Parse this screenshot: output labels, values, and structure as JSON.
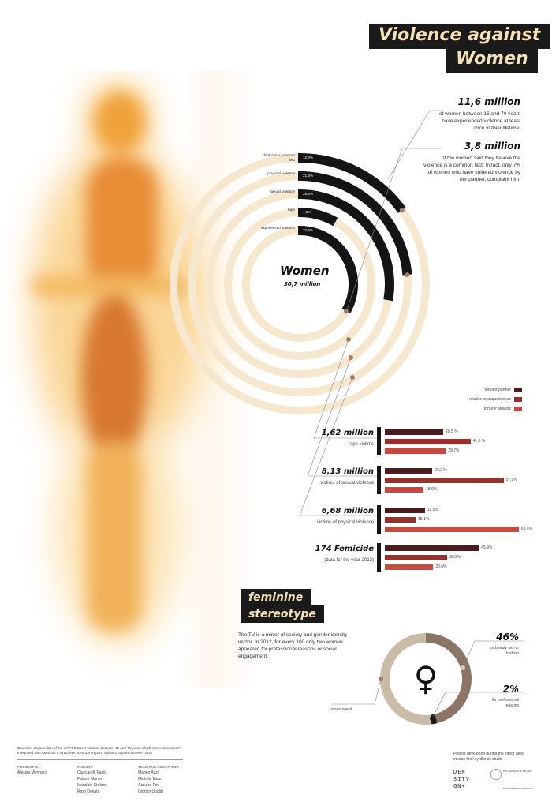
{
  "title": {
    "line1": "Violence against",
    "line2": "Women"
  },
  "facts": [
    {
      "value": "11,6 million",
      "text": "of women between 16 and 70 years have experienced violence at least once in their lifetime."
    },
    {
      "value": "3,8 million",
      "text": "of the women said they believe the violence is a common fact; In fact, only 7% of women who have suffered violence by her partner, complaint him."
    }
  ],
  "women_center": {
    "label": "Women",
    "value": "30,7 million"
  },
  "ring_chart": {
    "type": "arc",
    "series": [
      {
        "label": "think it is a common fact",
        "display": "12,3%",
        "value": 12.3
      },
      {
        "label": "physical violence",
        "display": "21,8%",
        "value": 21.8
      },
      {
        "label": "sexual violence",
        "display": "26,5%",
        "value": 26.5
      },
      {
        "label": "rape",
        "display": "4,8%",
        "value": 4.8
      },
      {
        "label": "experienced violence",
        "display": "32,6%",
        "value": 32.6
      }
    ]
  },
  "legend": [
    {
      "label": "torturer partner",
      "color": "#4a1c1e"
    },
    {
      "label": "relative or acquaintance",
      "color": "#9a2f2c"
    },
    {
      "label": "torturer strange",
      "color": "#c94840"
    }
  ],
  "chart_data": {
    "type": "bar",
    "orientation": "horizontal",
    "series_names": [
      "torturer partner",
      "relative or acquaintance",
      "torturer strange"
    ],
    "groups": [
      {
        "title": "1,62 million",
        "subtitle": "rape victims",
        "values": [
          28.5,
          41.8,
          29.7
        ],
        "labels": [
          "28,5 %",
          "41,8 %",
          "29,7%"
        ]
      },
      {
        "title": "8,13 million",
        "subtitle": "victims of sexual violence",
        "values": [
          23.2,
          57.9,
          18.9
        ],
        "labels": [
          "23,2 %",
          "57,9%",
          "18,9%"
        ]
      },
      {
        "title": "6,68 million",
        "subtitle": "victims of physical violence",
        "values": [
          19.5,
          15.1,
          65.4
        ],
        "labels": [
          "19,5%",
          "15,1%",
          "65,4%"
        ]
      },
      {
        "title": "174 Femicide",
        "subtitle": "(data for the year 2012)",
        "values": [
          45.9,
          30.5,
          23.6
        ],
        "labels": [
          "45,9%",
          "30,5%",
          "23,6%"
        ]
      }
    ]
  },
  "stereotype": {
    "tag1": "feminine",
    "tag2": "stereotype",
    "text": "The TV is a mirror of society and gender identity vector. In 2012, for every 100 only two women appeared for professional reasons or social engagement.",
    "donut": [
      {
        "label": "never speak",
        "value": 52,
        "color": "#c9bba6"
      },
      {
        "label": "for beauty sex or fashion",
        "display": "46%",
        "value": 46,
        "color": "#8a7566"
      },
      {
        "label": "for professional reasons",
        "display": "2%",
        "value": 2,
        "color": "#1a1a1a"
      }
    ],
    "symbol": "♀"
  },
  "footer": {
    "source": "Based on original data of the ISTAT Dataset \"women between 16 and 70 years which received violence\" Integrated with AMNESTY INTERNATIONAL's Report \"Violence against women\" 2012",
    "project_by_label": "PROJECT BY",
    "project_by": "Alessia Mennani",
    "faculty_label": "FACULTY",
    "faculty": [
      "Ciuccarelli Paolo",
      "Fattore Marco",
      "Mandato Stefano",
      "Ricci Donato"
    ],
    "ta_label": "TEACHING ASSISTANTS",
    "ta": [
      "Matteo Azzi",
      "Michele Mauri",
      "Azzurra Pini",
      "Giorgio Uboldi"
    ],
    "developed": "Project developed during the integr ated course final synthesis studio",
    "logo": [
      "DEN",
      "SITY",
      "GN+"
    ],
    "uni1": "POLITECNICO DI MILANO",
    "uni2": "DIPARTIMENTO DI DESIGN"
  }
}
